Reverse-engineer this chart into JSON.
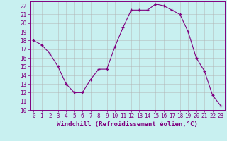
{
  "x": [
    0,
    1,
    2,
    3,
    4,
    5,
    6,
    7,
    8,
    9,
    10,
    11,
    12,
    13,
    14,
    15,
    16,
    17,
    18,
    19,
    20,
    21,
    22,
    23
  ],
  "y": [
    18,
    17.5,
    16.5,
    15,
    13,
    12,
    12,
    13.5,
    14.7,
    14.7,
    17.3,
    19.5,
    21.5,
    21.5,
    21.5,
    22.2,
    22,
    21.5,
    21,
    19,
    16,
    14.5,
    11.7,
    10.5
  ],
  "line_color": "#800080",
  "marker_color": "#800080",
  "bg_color": "#c8f0f0",
  "grid_color": "#b0b0b0",
  "xlabel": "Windchill (Refroidissement éolien,°C)",
  "xlabel_color": "#800080",
  "ylim": [
    10,
    22.5
  ],
  "xlim": [
    -0.5,
    23.5
  ],
  "yticks": [
    10,
    11,
    12,
    13,
    14,
    15,
    16,
    17,
    18,
    19,
    20,
    21,
    22
  ],
  "xticks": [
    0,
    1,
    2,
    3,
    4,
    5,
    6,
    7,
    8,
    9,
    10,
    11,
    12,
    13,
    14,
    15,
    16,
    17,
    18,
    19,
    20,
    21,
    22,
    23
  ],
  "tick_color": "#800080",
  "tick_fontsize": 5.5,
  "xlabel_fontsize": 6.5
}
